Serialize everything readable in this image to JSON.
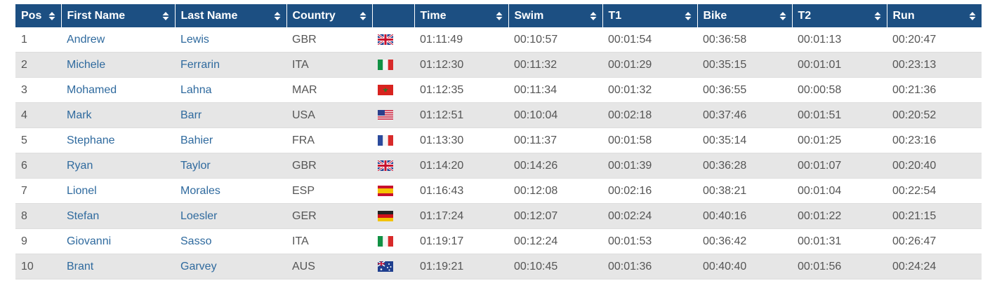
{
  "table": {
    "headers": [
      "Pos",
      "First Name",
      "Last Name",
      "Country",
      "Time",
      "Swim",
      "T1",
      "Bike",
      "T2",
      "Run"
    ],
    "rows": [
      [
        "1",
        "Andrew",
        "Lewis",
        "GBR",
        "01:11:49",
        "00:10:57",
        "00:01:54",
        "00:36:58",
        "00:01:13",
        "00:20:47"
      ],
      [
        "2",
        "Michele",
        "Ferrarin",
        "ITA",
        "01:12:30",
        "00:11:32",
        "00:01:29",
        "00:35:15",
        "00:01:01",
        "00:23:13"
      ],
      [
        "3",
        "Mohamed",
        "Lahna",
        "MAR",
        "01:12:35",
        "00:11:34",
        "00:01:32",
        "00:36:55",
        "00:00:58",
        "00:21:36"
      ],
      [
        "4",
        "Mark",
        "Barr",
        "USA",
        "01:12:51",
        "00:10:04",
        "00:02:18",
        "00:37:46",
        "00:01:51",
        "00:20:52"
      ],
      [
        "5",
        "Stephane",
        "Bahier",
        "FRA",
        "01:13:30",
        "00:11:37",
        "00:01:58",
        "00:35:14",
        "00:01:25",
        "00:23:16"
      ],
      [
        "6",
        "Ryan",
        "Taylor",
        "GBR",
        "01:14:20",
        "00:14:26",
        "00:01:39",
        "00:36:28",
        "00:01:07",
        "00:20:40"
      ],
      [
        "7",
        "Lionel",
        "Morales",
        "ESP",
        "01:16:43",
        "00:12:08",
        "00:02:16",
        "00:38:21",
        "00:01:04",
        "00:22:54"
      ],
      [
        "8",
        "Stefan",
        "Loesler",
        "GER",
        "01:17:24",
        "00:12:07",
        "00:02:24",
        "00:40:16",
        "00:01:22",
        "00:21:15"
      ],
      [
        "9",
        "Giovanni",
        "Sasso",
        "ITA",
        "01:19:17",
        "00:12:24",
        "00:01:53",
        "00:36:42",
        "00:01:31",
        "00:26:47"
      ],
      [
        "10",
        "Brant",
        "Garvey",
        "AUS",
        "01:19:21",
        "00:10:45",
        "00:01:36",
        "00:40:40",
        "00:01:56",
        "00:24:24"
      ]
    ]
  }
}
